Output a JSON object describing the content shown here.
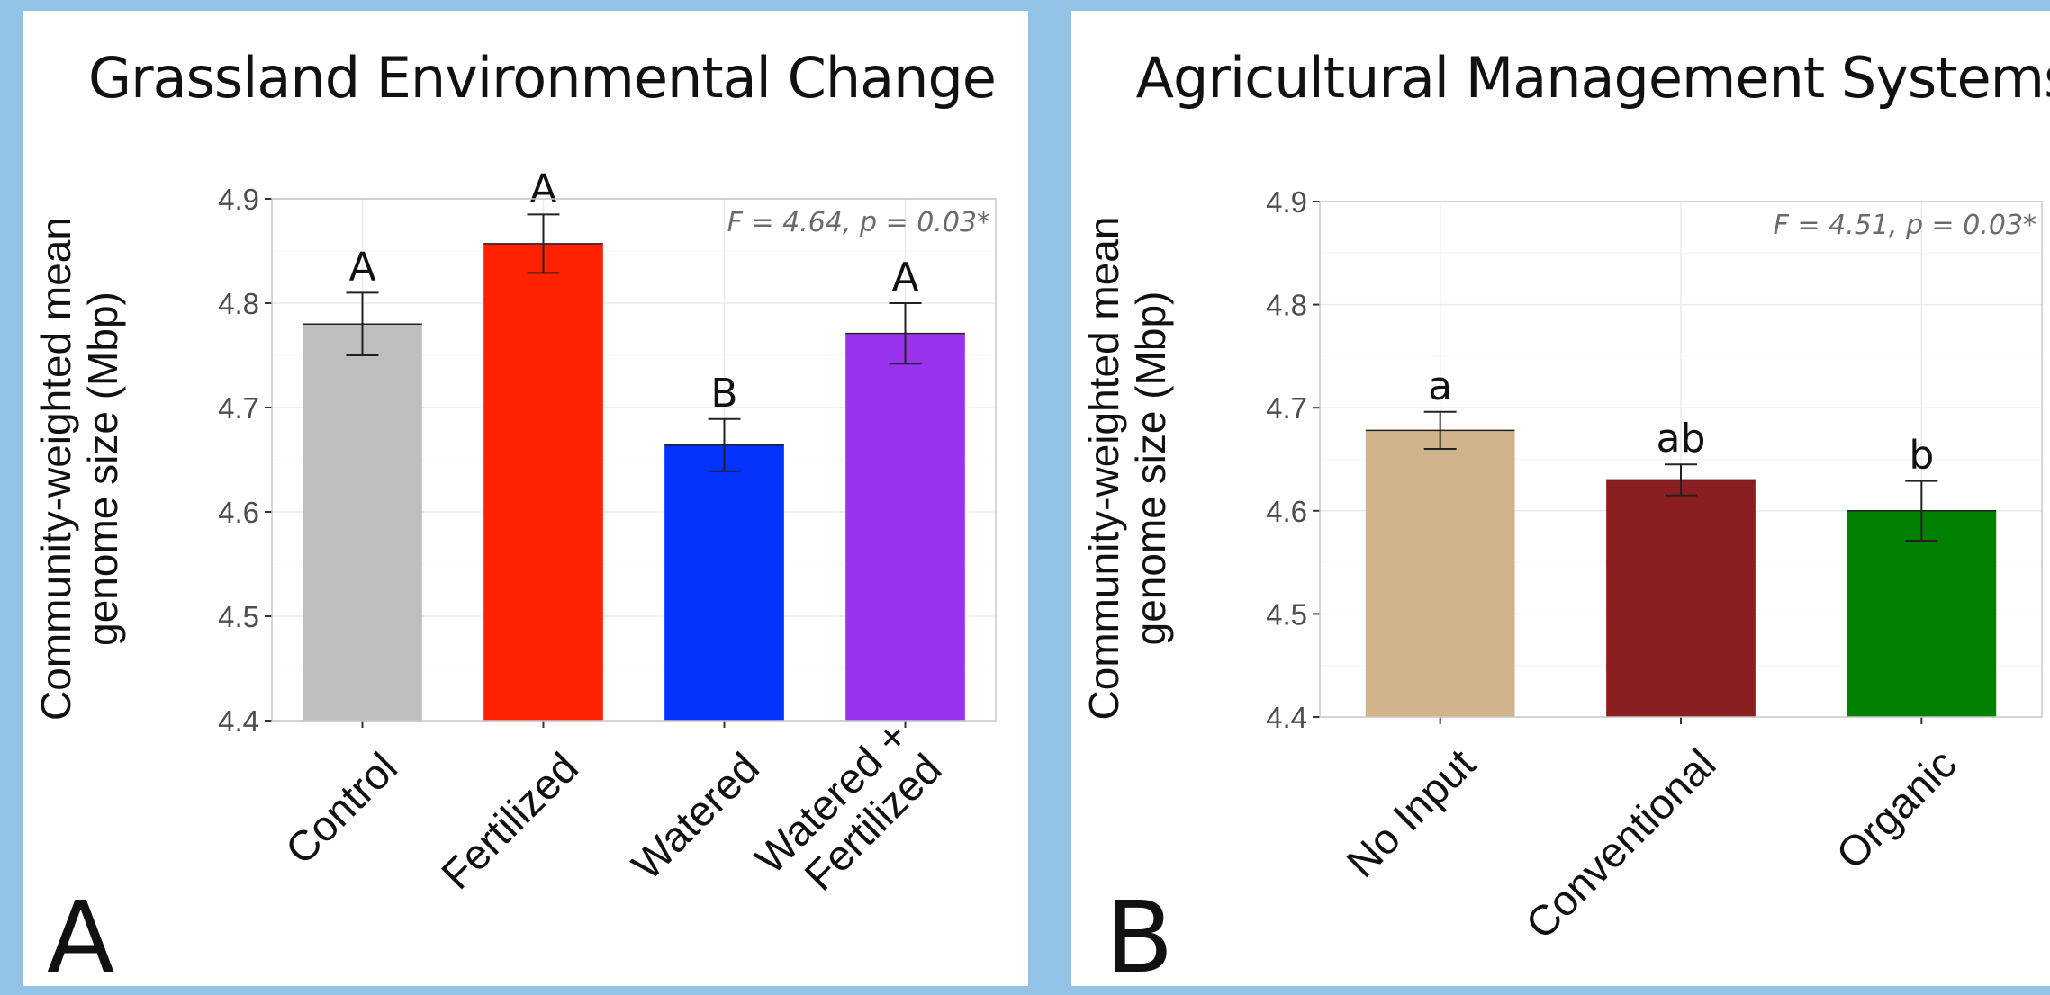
{
  "chart_data": [
    {
      "type": "bar",
      "panel_label": "A",
      "title": "Grassland Environmental Change",
      "ylabel_lines": [
        "Community-weighted mean",
        "genome size (Mbp)"
      ],
      "ylim": [
        4.4,
        4.9
      ],
      "yticks": [
        "4.4",
        "4.5",
        "4.6",
        "4.7",
        "4.8",
        "4.9"
      ],
      "grid": true,
      "categories": [
        [
          "Control"
        ],
        [
          "Fertilized"
        ],
        [
          "Watered"
        ],
        [
          "Watered +",
          "Fertilized"
        ]
      ],
      "values": [
        4.78,
        4.857,
        4.664,
        4.771
      ],
      "errors": [
        0.03,
        0.028,
        0.025,
        0.029
      ],
      "letters": [
        "A",
        "A",
        "B",
        "A"
      ],
      "colors": [
        "#bebebe",
        "#ff2200",
        "#0432ff",
        "#9933ee"
      ],
      "stat_text": "F = 4.64, p = 0.03*"
    },
    {
      "type": "bar",
      "panel_label": "B",
      "title": "Agricultural Management Systems",
      "ylabel_lines": [
        "Community-weighted mean",
        "genome size (Mbp)"
      ],
      "ylim": [
        4.4,
        4.9
      ],
      "yticks": [
        "4.4",
        "4.5",
        "4.6",
        "4.7",
        "4.8",
        "4.9"
      ],
      "grid": true,
      "categories": [
        [
          "No Input"
        ],
        [
          "Conventional"
        ],
        [
          "Organic"
        ]
      ],
      "values": [
        4.678,
        4.63,
        4.6
      ],
      "errors": [
        0.018,
        0.015,
        0.029
      ],
      "letters": [
        "a",
        "ab",
        "b"
      ],
      "colors": [
        "#d2b48c",
        "#8b1f1f",
        "#008000"
      ],
      "stat_text": "F = 4.51, p = 0.03*"
    }
  ]
}
